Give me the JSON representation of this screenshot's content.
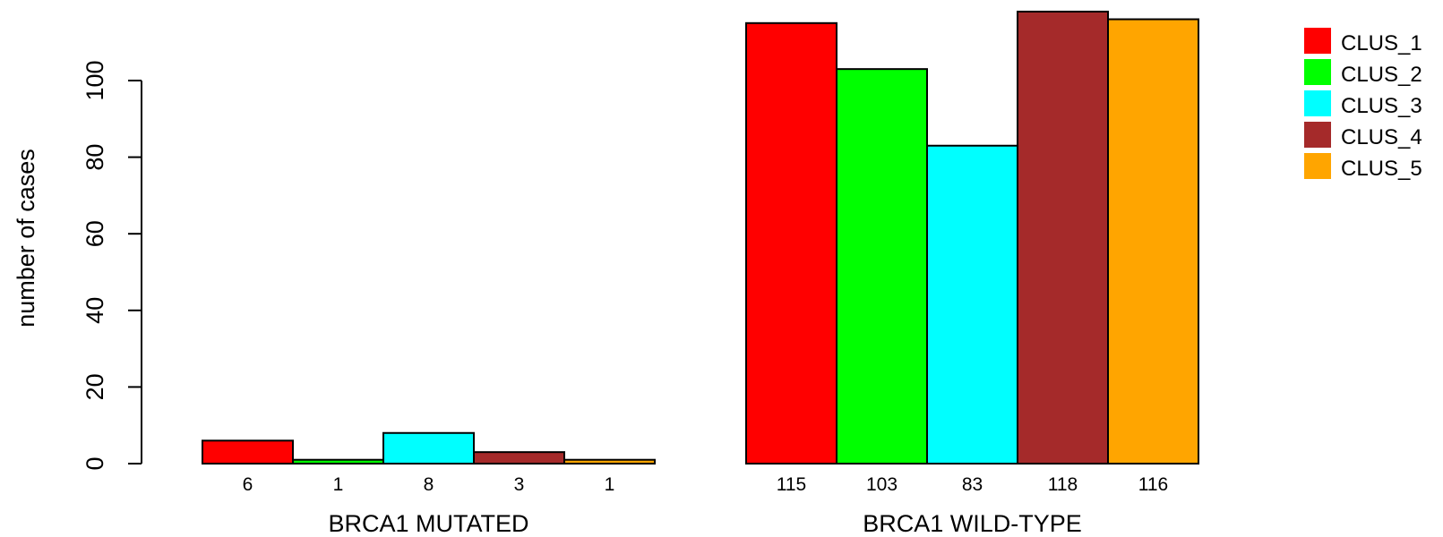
{
  "chart_data": {
    "type": "bar",
    "ylabel": "number of cases",
    "xlabel": "",
    "ylim": [
      0,
      120
    ],
    "yticks": [
      0,
      20,
      40,
      60,
      80,
      100
    ],
    "groups": [
      "BRCA1 MUTATED",
      "BRCA1 WILD-TYPE"
    ],
    "series": [
      {
        "name": "CLUS_1",
        "color": "#ff0000",
        "values": [
          6,
          115
        ]
      },
      {
        "name": "CLUS_2",
        "color": "#00ff00",
        "values": [
          1,
          103
        ]
      },
      {
        "name": "CLUS_3",
        "color": "#00ffff",
        "values": [
          8,
          83
        ]
      },
      {
        "name": "CLUS_4",
        "color": "#a52a2a",
        "values": [
          3,
          118
        ]
      },
      {
        "name": "CLUS_5",
        "color": "#ffa500",
        "values": [
          1,
          116
        ]
      }
    ],
    "count_labels": [
      [
        "6",
        "1",
        "8",
        "3",
        "1"
      ],
      [
        "115",
        "103",
        "83",
        "118",
        "116"
      ]
    ],
    "legend_position": "top-right",
    "grid": false
  }
}
